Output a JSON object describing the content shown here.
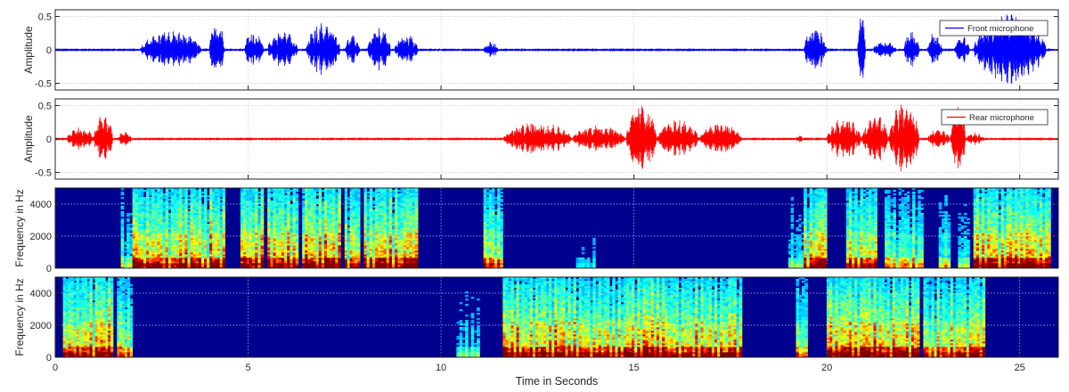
{
  "chart_data": [
    {
      "type": "line",
      "ylabel": "Amplitude",
      "ylim": [
        -0.6,
        0.6
      ],
      "xlim": [
        0,
        26
      ],
      "yticks": [
        "0.5",
        "0",
        "-0.5"
      ],
      "grid": true,
      "legend": "top-right",
      "series": [
        {
          "name": "Front microphone",
          "color": "#0000ff",
          "noise": 0.007
        }
      ],
      "bursts": [
        {
          "start": 2.2,
          "end": 3.8,
          "amp": 0.3
        },
        {
          "start": 4.0,
          "end": 4.4,
          "amp": 0.47
        },
        {
          "start": 4.9,
          "end": 5.4,
          "amp": 0.3
        },
        {
          "start": 5.5,
          "end": 6.3,
          "amp": 0.3
        },
        {
          "start": 6.5,
          "end": 7.4,
          "amp": 0.42
        },
        {
          "start": 7.5,
          "end": 7.9,
          "amp": 0.22
        },
        {
          "start": 8.1,
          "end": 8.7,
          "amp": 0.34
        },
        {
          "start": 8.8,
          "end": 9.4,
          "amp": 0.26
        },
        {
          "start": 11.1,
          "end": 11.5,
          "amp": 0.12
        },
        {
          "start": 19.4,
          "end": 20.0,
          "amp": 0.36
        },
        {
          "start": 20.8,
          "end": 21.0,
          "amp": 0.62
        },
        {
          "start": 21.2,
          "end": 21.8,
          "amp": 0.14
        },
        {
          "start": 22.0,
          "end": 22.4,
          "amp": 0.3
        },
        {
          "start": 22.6,
          "end": 23.0,
          "amp": 0.28
        },
        {
          "start": 23.3,
          "end": 23.7,
          "amp": 0.22
        },
        {
          "start": 23.8,
          "end": 25.7,
          "amp": 0.58
        }
      ]
    },
    {
      "type": "line",
      "ylabel": "Amplitude",
      "ylim": [
        -0.6,
        0.6
      ],
      "xlim": [
        0,
        26
      ],
      "yticks": [
        "0.5",
        "0",
        "-0.5"
      ],
      "grid": true,
      "legend": "top-right",
      "series": [
        {
          "name": "Rear microphone",
          "color": "#ff0000",
          "noise": 0.007
        }
      ],
      "bursts": [
        {
          "start": 0.3,
          "end": 1.0,
          "amp": 0.18
        },
        {
          "start": 1.0,
          "end": 1.5,
          "amp": 0.38
        },
        {
          "start": 1.6,
          "end": 2.0,
          "amp": 0.12
        },
        {
          "start": 11.6,
          "end": 13.4,
          "amp": 0.27
        },
        {
          "start": 13.4,
          "end": 14.8,
          "amp": 0.22
        },
        {
          "start": 14.8,
          "end": 15.6,
          "amp": 0.55
        },
        {
          "start": 15.6,
          "end": 16.7,
          "amp": 0.3
        },
        {
          "start": 16.7,
          "end": 17.8,
          "amp": 0.25
        },
        {
          "start": 19.2,
          "end": 19.4,
          "amp": 0.06
        },
        {
          "start": 20.0,
          "end": 20.9,
          "amp": 0.32
        },
        {
          "start": 20.9,
          "end": 21.6,
          "amp": 0.38
        },
        {
          "start": 21.6,
          "end": 22.4,
          "amp": 0.58
        },
        {
          "start": 22.6,
          "end": 23.2,
          "amp": 0.15
        },
        {
          "start": 23.2,
          "end": 23.6,
          "amp": 0.55
        },
        {
          "start": 23.6,
          "end": 24.1,
          "amp": 0.1
        }
      ]
    },
    {
      "type": "heatmap",
      "ylabel": "Frequency in Hz",
      "ylim": [
        0,
        5000
      ],
      "xlim": [
        0,
        26
      ],
      "yticks": [
        "4000",
        "2000",
        "0"
      ],
      "colormap": "jet",
      "segments": [
        {
          "start": 1.7,
          "end": 2.0,
          "level": 0.45
        },
        {
          "start": 2.0,
          "end": 4.0,
          "level": 0.9
        },
        {
          "start": 4.0,
          "end": 4.4,
          "level": 1.0
        },
        {
          "start": 4.8,
          "end": 5.4,
          "level": 0.9
        },
        {
          "start": 5.5,
          "end": 6.3,
          "level": 0.95
        },
        {
          "start": 6.4,
          "end": 7.4,
          "level": 1.0
        },
        {
          "start": 7.5,
          "end": 7.9,
          "level": 0.8
        },
        {
          "start": 8.0,
          "end": 8.8,
          "level": 0.95
        },
        {
          "start": 8.8,
          "end": 9.4,
          "level": 0.9
        },
        {
          "start": 11.1,
          "end": 11.6,
          "level": 0.75
        },
        {
          "start": 13.5,
          "end": 14.0,
          "level": 0.25
        },
        {
          "start": 19.0,
          "end": 19.4,
          "level": 0.4
        },
        {
          "start": 19.4,
          "end": 20.0,
          "level": 0.95
        },
        {
          "start": 20.5,
          "end": 21.3,
          "level": 0.85
        },
        {
          "start": 21.5,
          "end": 22.5,
          "level": 0.6
        },
        {
          "start": 22.9,
          "end": 23.2,
          "level": 0.5
        },
        {
          "start": 23.4,
          "end": 23.7,
          "level": 0.45
        },
        {
          "start": 23.8,
          "end": 25.8,
          "level": 1.0
        }
      ]
    },
    {
      "type": "heatmap",
      "ylabel": "Frequency in Hz",
      "ylim": [
        0,
        5000
      ],
      "xlim": [
        0,
        26
      ],
      "yticks": [
        "4000",
        "2000",
        "0"
      ],
      "colormap": "jet",
      "xlabel": "Time in Seconds",
      "xticks": [
        "0",
        "5",
        "10",
        "15",
        "20",
        "25"
      ],
      "segments": [
        {
          "start": 0.2,
          "end": 1.1,
          "level": 0.9
        },
        {
          "start": 1.1,
          "end": 1.5,
          "level": 1.0
        },
        {
          "start": 1.6,
          "end": 2.0,
          "level": 0.8
        },
        {
          "start": 10.4,
          "end": 11.0,
          "level": 0.35
        },
        {
          "start": 11.6,
          "end": 13.5,
          "level": 0.95
        },
        {
          "start": 13.5,
          "end": 14.8,
          "level": 0.85
        },
        {
          "start": 14.8,
          "end": 15.8,
          "level": 1.0
        },
        {
          "start": 15.8,
          "end": 16.8,
          "level": 0.95
        },
        {
          "start": 16.8,
          "end": 17.8,
          "level": 0.9
        },
        {
          "start": 19.2,
          "end": 19.5,
          "level": 0.6
        },
        {
          "start": 20.0,
          "end": 21.0,
          "level": 1.0
        },
        {
          "start": 21.0,
          "end": 22.4,
          "level": 0.95
        },
        {
          "start": 22.5,
          "end": 23.2,
          "level": 0.8
        },
        {
          "start": 23.2,
          "end": 24.1,
          "level": 0.9
        }
      ]
    }
  ]
}
